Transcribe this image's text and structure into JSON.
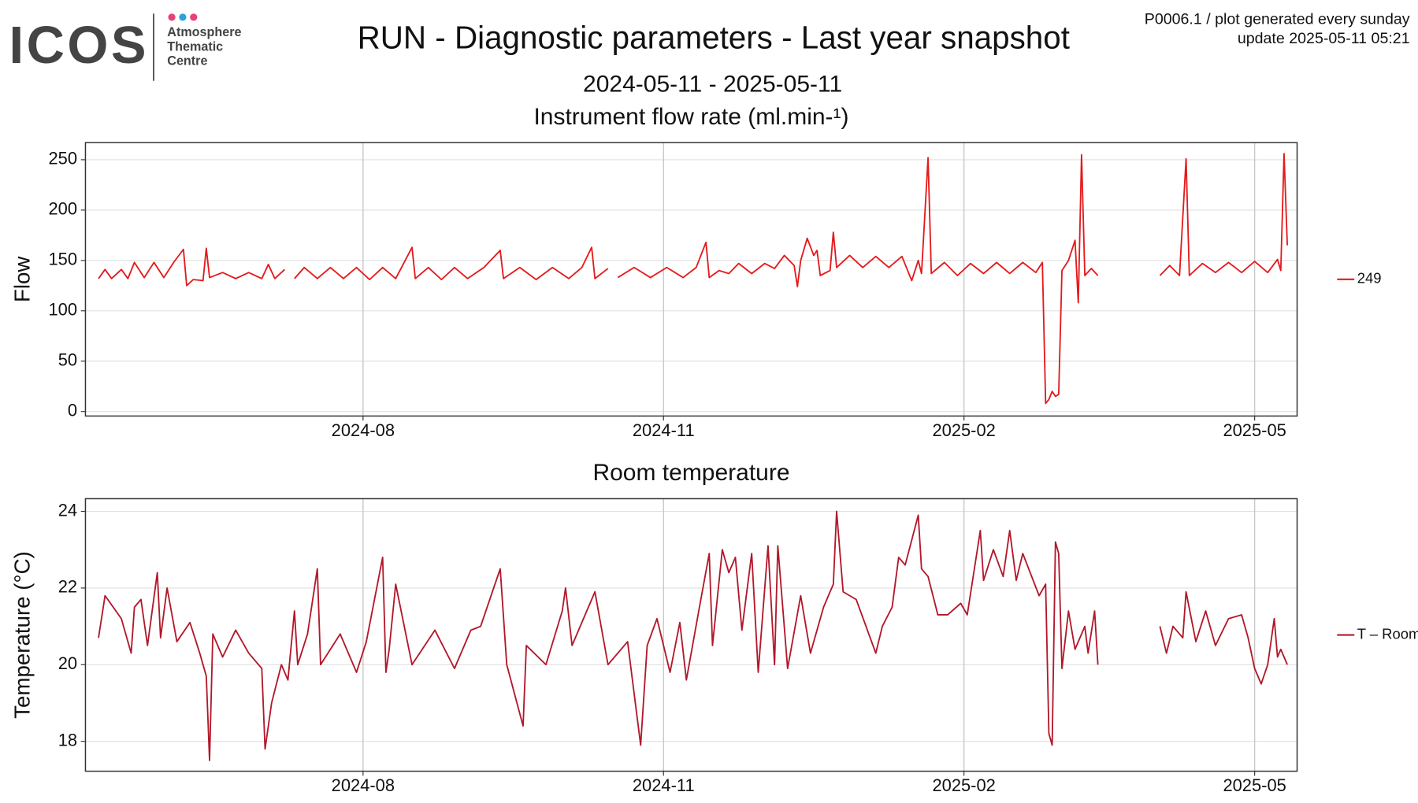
{
  "header": {
    "logo": "ICOS",
    "logo_lines": [
      "Atmosphere",
      "Thematic",
      "Centre"
    ],
    "title": "RUN - Diagnostic parameters - Last year snapshot",
    "subtitle": "2024-05-11 - 2025-05-11",
    "note": [
      "P0006.1 / plot generated every sunday",
      "update  2025-05-11 05:21"
    ]
  },
  "chart_data": [
    {
      "type": "line",
      "title": "Instrument flow rate (ml.min-¹)",
      "ylabel": "Flow",
      "grid": true,
      "legend": "right",
      "xlim": [
        "2024-05-08",
        "2025-05-14"
      ],
      "xticks": [
        {
          "value": "2024-08-01",
          "label": "2024-08"
        },
        {
          "value": "2024-11-01",
          "label": "2024-11"
        },
        {
          "value": "2025-02-01",
          "label": "2025-02"
        },
        {
          "value": "2025-05-01",
          "label": "2025-05"
        }
      ],
      "ylim": [
        -4.5,
        267
      ],
      "yticks": [
        0,
        50,
        100,
        150,
        200,
        250
      ],
      "x": [
        "2024-05-12",
        "2024-05-14",
        "2024-05-16",
        "2024-05-19",
        "2024-05-21",
        "2024-05-23",
        "2024-05-26",
        "2024-05-29",
        "2024-06-01",
        "2024-06-04",
        "2024-06-07",
        "2024-06-08",
        "2024-06-10",
        "2024-06-13",
        "2024-06-14",
        "2024-06-15",
        "2024-06-19",
        "2024-06-23",
        "2024-06-27",
        "2024-07-01",
        "2024-07-03",
        "2024-07-05",
        "2024-07-08",
        "2024-07-09",
        "2024-07-11",
        "2024-07-14",
        "2024-07-18",
        "2024-07-22",
        "2024-07-26",
        "2024-07-30",
        "2024-08-03",
        "2024-08-07",
        "2024-08-11",
        "2024-08-16",
        "2024-08-17",
        "2024-08-21",
        "2024-08-25",
        "2024-08-29",
        "2024-09-02",
        "2024-09-07",
        "2024-09-12",
        "2024-09-13",
        "2024-09-18",
        "2024-09-23",
        "2024-09-28",
        "2024-10-03",
        "2024-10-07",
        "2024-10-10",
        "2024-10-11",
        "2024-10-15",
        "2024-10-17",
        "2024-10-18",
        "2024-10-23",
        "2024-10-28",
        "2024-11-02",
        "2024-11-07",
        "2024-11-11",
        "2024-11-14",
        "2024-11-15",
        "2024-11-18",
        "2024-11-21",
        "2024-11-24",
        "2024-11-28",
        "2024-12-02",
        "2024-12-05",
        "2024-12-08",
        "2024-12-11",
        "2024-12-12",
        "2024-12-13",
        "2024-12-15",
        "2024-12-17",
        "2024-12-18",
        "2024-12-19",
        "2024-12-22",
        "2024-12-23",
        "2024-12-24",
        "2024-12-28",
        "2025-01-01",
        "2025-01-05",
        "2025-01-09",
        "2025-01-13",
        "2025-01-16",
        "2025-01-18",
        "2025-01-19",
        "2025-01-21",
        "2025-01-22",
        "2025-01-26",
        "2025-01-30",
        "2025-02-03",
        "2025-02-07",
        "2025-02-11",
        "2025-02-15",
        "2025-02-19",
        "2025-02-23",
        "2025-02-25",
        "2025-02-26",
        "2025-02-27",
        "2025-02-28",
        "2025-03-01",
        "2025-03-02",
        "2025-03-03",
        "2025-03-05",
        "2025-03-07",
        "2025-03-08",
        "2025-03-09",
        "2025-03-10",
        "2025-03-12",
        "2025-03-14",
        "2025-03-15",
        "2025-04-02",
        "2025-04-05",
        "2025-04-08",
        "2025-04-10",
        "2025-04-11",
        "2025-04-15",
        "2025-04-19",
        "2025-04-23",
        "2025-04-27",
        "2025-05-01",
        "2025-05-05",
        "2025-05-08",
        "2025-05-09",
        "2025-05-10",
        "2025-05-11"
      ],
      "series": [
        {
          "name": "249",
          "color": "#e41a1c",
          "values": [
            132,
            141,
            132,
            141,
            132,
            148,
            133,
            148,
            133,
            148,
            161,
            125,
            131,
            130,
            162,
            133,
            138,
            132,
            138,
            132,
            146,
            132,
            141,
            null,
            132,
            143,
            132,
            143,
            132,
            143,
            131,
            143,
            132,
            163,
            132,
            143,
            131,
            143,
            132,
            143,
            160,
            132,
            143,
            131,
            143,
            132,
            143,
            163,
            132,
            142,
            null,
            133,
            143,
            133,
            143,
            133,
            143,
            168,
            133,
            140,
            137,
            147,
            137,
            147,
            142,
            155,
            145,
            124,
            150,
            172,
            155,
            160,
            135,
            140,
            178,
            143,
            155,
            143,
            154,
            143,
            154,
            130,
            150,
            137,
            252,
            137,
            148,
            135,
            147,
            137,
            148,
            137,
            148,
            138,
            148,
            8,
            12,
            20,
            15,
            17,
            140,
            150,
            170,
            108,
            255,
            135,
            142,
            135,
            null,
            135,
            145,
            135,
            251,
            135,
            147,
            138,
            148,
            138,
            149,
            138,
            151,
            140,
            256,
            165
          ]
        }
      ]
    },
    {
      "type": "line",
      "title": "Room temperature",
      "ylabel": "Temperature (°C)",
      "grid": true,
      "legend": "right",
      "xlim": [
        "2024-05-08",
        "2025-05-14"
      ],
      "xticks": [
        {
          "value": "2024-08-01",
          "label": "2024-08"
        },
        {
          "value": "2024-11-01",
          "label": "2024-11"
        },
        {
          "value": "2025-02-01",
          "label": "2025-02"
        },
        {
          "value": "2025-05-01",
          "label": "2025-05"
        }
      ],
      "ylim": [
        17.22,
        24.33
      ],
      "yticks": [
        18,
        20,
        22,
        24
      ],
      "x": [
        "2024-05-12",
        "2024-05-14",
        "2024-05-19",
        "2024-05-22",
        "2024-05-23",
        "2024-05-25",
        "2024-05-27",
        "2024-05-30",
        "2024-05-31",
        "2024-06-02",
        "2024-06-05",
        "2024-06-09",
        "2024-06-12",
        "2024-06-14",
        "2024-06-15",
        "2024-06-16",
        "2024-06-19",
        "2024-06-23",
        "2024-06-27",
        "2024-07-01",
        "2024-07-02",
        "2024-07-04",
        "2024-07-07",
        "2024-07-09",
        "2024-07-11",
        "2024-07-12",
        "2024-07-15",
        "2024-07-18",
        "2024-07-19",
        "2024-07-25",
        "2024-07-30",
        "2024-08-02",
        "2024-08-07",
        "2024-08-08",
        "2024-08-09",
        "2024-08-11",
        "2024-08-16",
        "2024-08-23",
        "2024-08-29",
        "2024-09-03",
        "2024-09-06",
        "2024-09-12",
        "2024-09-14",
        "2024-09-19",
        "2024-09-20",
        "2024-09-26",
        "2024-10-01",
        "2024-10-02",
        "2024-10-04",
        "2024-10-11",
        "2024-10-15",
        "2024-10-21",
        "2024-10-25",
        "2024-10-27",
        "2024-10-30",
        "2024-11-03",
        "2024-11-06",
        "2024-11-08",
        "2024-11-12",
        "2024-11-15",
        "2024-11-16",
        "2024-11-19",
        "2024-11-21",
        "2024-11-23",
        "2024-11-25",
        "2024-11-28",
        "2024-11-30",
        "2024-12-03",
        "2024-12-05",
        "2024-12-06",
        "2024-12-09",
        "2024-12-13",
        "2024-12-16",
        "2024-12-20",
        "2024-12-23",
        "2024-12-24",
        "2024-12-26",
        "2024-12-30",
        "2025-01-02",
        "2025-01-05",
        "2025-01-07",
        "2025-01-10",
        "2025-01-12",
        "2025-01-14",
        "2025-01-18",
        "2025-01-19",
        "2025-01-21",
        "2025-01-24",
        "2025-01-27",
        "2025-01-31",
        "2025-02-02",
        "2025-02-06",
        "2025-02-07",
        "2025-02-10",
        "2025-02-13",
        "2025-02-15",
        "2025-02-17",
        "2025-02-19",
        "2025-02-24",
        "2025-02-26",
        "2025-02-27",
        "2025-02-28",
        "2025-03-01",
        "2025-03-02",
        "2025-03-03",
        "2025-03-05",
        "2025-03-07",
        "2025-03-10",
        "2025-03-11",
        "2025-03-13",
        "2025-03-14",
        "2025-03-15",
        "2025-04-02",
        "2025-04-04",
        "2025-04-06",
        "2025-04-09",
        "2025-04-10",
        "2025-04-13",
        "2025-04-16",
        "2025-04-19",
        "2025-04-23",
        "2025-04-27",
        "2025-04-29",
        "2025-05-01",
        "2025-05-03",
        "2025-05-05",
        "2025-05-07",
        "2025-05-08",
        "2025-05-09",
        "2025-05-11"
      ],
      "series": [
        {
          "name": "T – Room",
          "color": "#b2182b",
          "values": [
            20.7,
            21.8,
            21.2,
            20.3,
            21.5,
            21.7,
            20.5,
            22.4,
            20.7,
            22.0,
            20.6,
            21.1,
            20.3,
            19.7,
            17.5,
            20.8,
            20.2,
            20.9,
            20.3,
            19.9,
            17.8,
            19.0,
            20.0,
            19.6,
            21.4,
            20.0,
            20.8,
            22.5,
            20.0,
            20.8,
            19.8,
            20.6,
            22.8,
            19.8,
            20.4,
            22.1,
            20.0,
            20.9,
            19.9,
            20.9,
            21.0,
            22.5,
            20.0,
            18.4,
            20.5,
            20.0,
            21.4,
            22.0,
            20.5,
            21.9,
            20.0,
            20.6,
            17.9,
            20.5,
            21.2,
            19.8,
            21.1,
            19.6,
            21.5,
            22.9,
            20.5,
            23.0,
            22.4,
            22.8,
            20.9,
            22.9,
            19.8,
            23.1,
            20.0,
            23.1,
            19.9,
            21.8,
            20.3,
            21.5,
            22.1,
            24.0,
            21.9,
            21.7,
            21.0,
            20.3,
            21.0,
            21.5,
            22.8,
            22.6,
            23.9,
            22.5,
            22.3,
            21.3,
            21.3,
            21.6,
            21.3,
            23.5,
            22.2,
            23.0,
            22.3,
            23.5,
            22.2,
            22.9,
            21.8,
            22.1,
            18.2,
            17.9,
            23.2,
            22.9,
            19.9,
            21.4,
            20.4,
            21.0,
            20.3,
            21.4,
            20.0,
            null,
            21.0,
            20.3,
            21.0,
            20.7,
            21.9,
            20.6,
            21.4,
            20.5,
            21.2,
            21.3,
            20.7,
            19.9,
            19.5,
            20.0,
            21.2,
            20.2,
            20.4,
            20.0
          ]
        }
      ]
    }
  ]
}
